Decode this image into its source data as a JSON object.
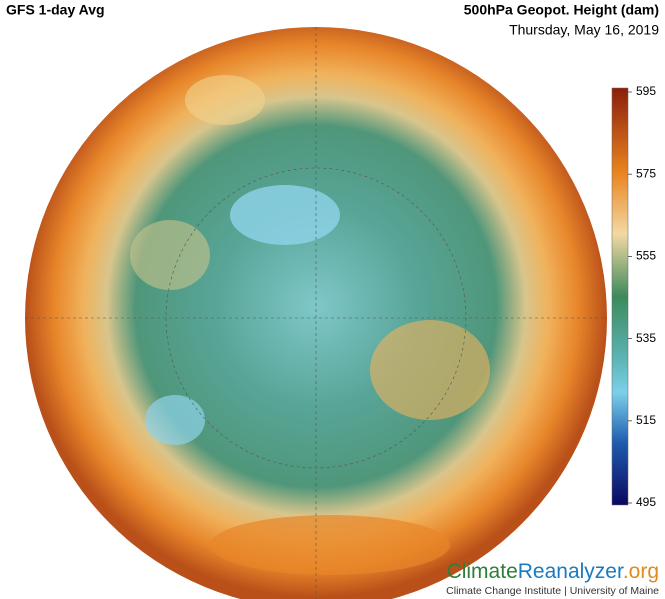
{
  "header": {
    "title": "GFS 1-day Avg",
    "variable": "500hPa Geopot. Height (dam)",
    "date": "Thursday, May 16, 2019"
  },
  "colorbar": {
    "range": [
      495,
      595
    ],
    "ticks": [
      595,
      575,
      555,
      535,
      515,
      495
    ]
  },
  "logo": {
    "part1": "Climate",
    "part2": "Reanalyzer",
    "part3": ".org",
    "subtitle": "Climate Change Institute | University of Maine"
  }
}
